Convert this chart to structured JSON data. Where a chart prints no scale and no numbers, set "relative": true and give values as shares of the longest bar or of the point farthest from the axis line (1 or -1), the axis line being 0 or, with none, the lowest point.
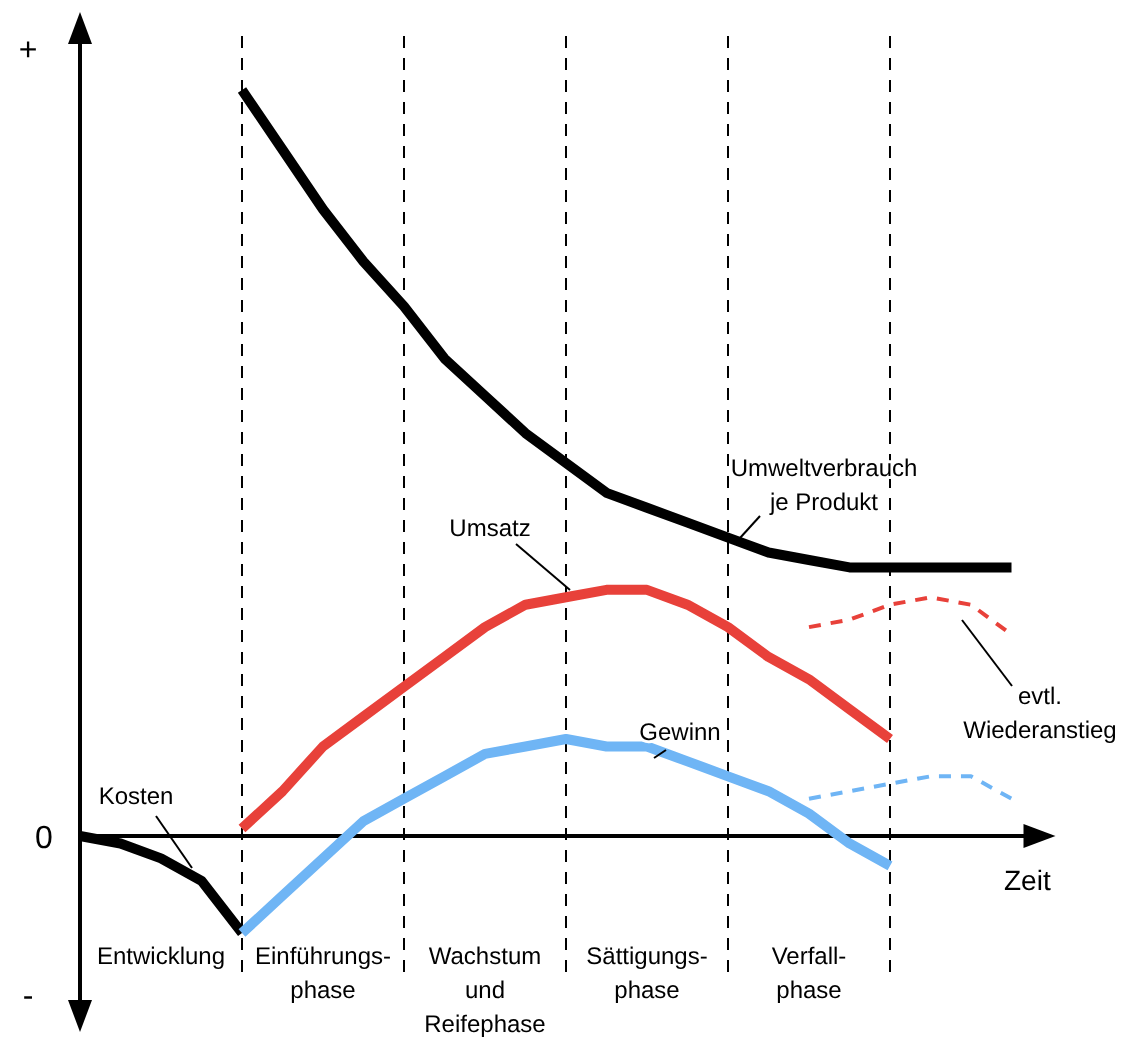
{
  "chart_data": {
    "type": "line",
    "relative": true,
    "grid": "x",
    "xlabel": "Zeit",
    "categories": [
      null,
      null,
      "Entwicklung",
      null,
      null,
      null,
      "Einführungs-\nphase",
      null,
      null,
      null,
      "Wachstum\nund\nReifephase",
      null,
      null,
      null,
      "Sättigungs-\nphase",
      null,
      null,
      null,
      "Verfall-\nphase",
      null,
      null,
      null,
      null,
      null
    ],
    "series": [
      {
        "name": "Kosten",
        "color": "#000000",
        "values": [
          0,
          -0.01,
          -0.03,
          -0.06,
          -0.13,
          null,
          null,
          null,
          null,
          null,
          null,
          null,
          null,
          null,
          null,
          null,
          null,
          null,
          null,
          null,
          null,
          null,
          null,
          null
        ]
      },
      {
        "name": "Umweltverbrauch\nje Produkt",
        "color": "#000000",
        "values": [
          null,
          null,
          null,
          null,
          1,
          0.92,
          0.84,
          0.77,
          0.71,
          0.64,
          0.59,
          0.54,
          0.5,
          0.46,
          0.44,
          0.42,
          0.4,
          0.38,
          0.37,
          0.36,
          0.36,
          0.36,
          0.36,
          0.36
        ]
      },
      {
        "name": "Umsatz",
        "color": "#e8413a",
        "values": [
          null,
          null,
          null,
          null,
          0.01,
          0.06,
          0.12,
          0.16,
          0.2,
          0.24,
          0.28,
          0.31,
          0.32,
          0.33,
          0.33,
          0.31,
          0.28,
          0.24,
          0.21,
          0.17,
          0.13,
          null,
          null,
          null
        ]
      },
      {
        "name": "Gewinn",
        "color": "#6fb5f5",
        "values": [
          null,
          null,
          null,
          null,
          -0.13,
          -0.08,
          -0.03,
          0.02,
          0.05,
          0.08,
          0.11,
          0.12,
          0.13,
          0.12,
          0.12,
          0.1,
          0.08,
          0.06,
          0.03,
          -0.01,
          -0.04,
          null,
          null,
          null
        ]
      },
      {
        "color": "#e8413a",
        "line_style": "dashed",
        "values": [
          null,
          null,
          null,
          null,
          null,
          null,
          null,
          null,
          null,
          null,
          null,
          null,
          null,
          null,
          null,
          null,
          null,
          null,
          0.28,
          0.29,
          0.31,
          0.32,
          0.31,
          0.27
        ]
      },
      {
        "color": "#6fb5f5",
        "line_style": "dashed",
        "values": [
          null,
          null,
          null,
          null,
          null,
          null,
          null,
          null,
          null,
          null,
          null,
          null,
          null,
          null,
          null,
          null,
          null,
          null,
          0.05,
          0.06,
          0.07,
          0.08,
          0.08,
          0.05
        ]
      }
    ],
    "annotations": [
      "evtl.\nWiederanstieg",
      "+",
      "0",
      "-"
    ]
  }
}
